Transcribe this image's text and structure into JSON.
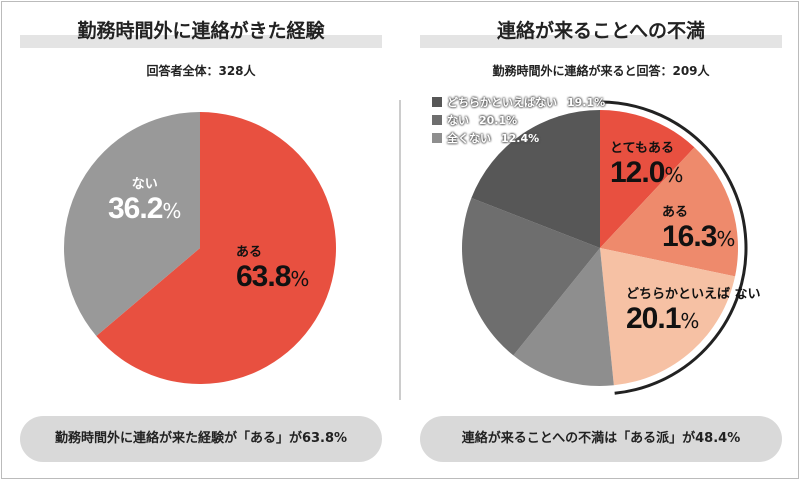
{
  "left": {
    "title": "勤務時間外に連絡がきた経験",
    "subtitle": "回答者全体：328人",
    "summary": "勤務時間外に連絡が来た経験が「ある」が63.8%"
  },
  "right": {
    "title": "連絡が来ることへの不満",
    "subtitle": "勤務時間外に連絡が来ると回答：209人",
    "summary": "連絡が来ることへの不満は「ある派」が48.4%"
  },
  "chart_data": [
    {
      "type": "pie",
      "start": "12 o'clock",
      "direction": "clockwise",
      "slices": [
        {
          "label": "ある",
          "value": 63.8,
          "display": "63.8",
          "color": "#e85040"
        },
        {
          "label": "ない",
          "value": 36.2,
          "display": "36.2",
          "color": "#999999"
        }
      ],
      "unit": "%"
    },
    {
      "type": "pie",
      "start": "12 o'clock",
      "direction": "clockwise",
      "slices": [
        {
          "label": "とてもある",
          "value": 12.0,
          "display": "12.0",
          "color": "#e85040"
        },
        {
          "label": "ある",
          "value": 16.3,
          "display": "16.3",
          "color": "#ee8a6c"
        },
        {
          "label": "どちらかといえば ない",
          "value": 20.1,
          "display": "20.1",
          "color": "#f6c1a4"
        },
        {
          "label": "全くない",
          "value": 12.4,
          "display": "12.4",
          "color": "#8e8e8e"
        },
        {
          "label": "ない",
          "value": 20.1,
          "display": "20.1",
          "color": "#6e6e6e"
        },
        {
          "label": "どちらかといえばない",
          "value": 19.1,
          "display": "19.1",
          "color": "#575757"
        }
      ],
      "legend": [
        {
          "label": "どちらかといえばない",
          "value": "19.1%",
          "color": "#575757"
        },
        {
          "label": "ない",
          "value": "20.1%",
          "color": "#6e6e6e"
        },
        {
          "label": "全くない",
          "value": "12.4%",
          "color": "#8e8e8e"
        }
      ],
      "legend_position": "top-left",
      "unit": "%"
    }
  ]
}
